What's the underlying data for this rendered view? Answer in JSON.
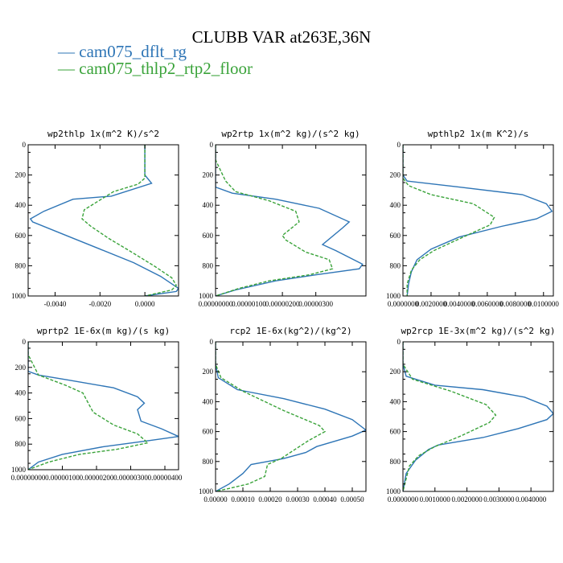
{
  "figure": {
    "title": "CLUBB VAR at263E,36N",
    "legend": [
      {
        "label": "cam075_dflt_rg",
        "color": "#2E75B6"
      },
      {
        "label": "cam075_thlp2_rtp2_floor",
        "color": "#3AA33A"
      }
    ]
  },
  "chart_data": [
    {
      "type": "line",
      "title": "wp2thlp  1x(m^2 K)/s^2",
      "xlim": [
        -0.0052,
        0.0015
      ],
      "ylim": [
        1000,
        0
      ],
      "xticks": [
        -0.004,
        -0.002,
        0.0
      ],
      "xtick_labels": [
        "-0.0040",
        "-0.0020",
        "0.0000"
      ],
      "yticks": [
        0,
        200,
        400,
        600,
        800,
        1000
      ],
      "ytick_labels": [
        "0",
        "200",
        "400",
        "600",
        "800",
        "1000"
      ],
      "series": [
        {
          "name": "cam075_dflt_rg",
          "dashed": false,
          "x": [
            0.0,
            0.0,
            0.0,
            0.0003,
            -0.0015,
            -0.0032,
            -0.0045,
            -0.0051,
            -0.005,
            -0.0035,
            -0.002,
            -0.0005,
            0.0007,
            0.0013,
            0.0015,
            0.0014,
            0.0
          ],
          "y": [
            0,
            100,
            200,
            255,
            340,
            360,
            440,
            490,
            510,
            600,
            690,
            780,
            870,
            930,
            950,
            970,
            1000
          ]
        },
        {
          "name": "cam075_thlp2_rtp2_floor",
          "dashed": true,
          "x": [
            0.0,
            0.0,
            0.0,
            -0.0003,
            -0.0014,
            -0.0027,
            -0.0028,
            -0.0024,
            -0.0016,
            -0.0007,
            0.0004,
            0.0012,
            0.0014,
            0.0012,
            0.0
          ],
          "y": [
            0,
            100,
            220,
            260,
            310,
            430,
            490,
            540,
            620,
            700,
            800,
            880,
            930,
            960,
            1000
          ]
        }
      ]
    },
    {
      "type": "line",
      "title": "wp2rtp  1x(m^2 kg)/(s^2 kg)",
      "xlim": [
        0.0,
        4.5e-06
      ],
      "ylim": [
        1000,
        0
      ],
      "xticks": [
        0.0,
        1e-06,
        2e-06,
        3e-06
      ],
      "xtick_labels": [
        "0.00000000",
        "0.00000100",
        "0.00000200",
        "0.00000300"
      ],
      "yticks": [
        0,
        200,
        400,
        600,
        800,
        1000
      ],
      "ytick_labels": [
        "0",
        "200",
        "400",
        "600",
        "800",
        "1000"
      ],
      "series": [
        {
          "name": "cam075_dflt_rg",
          "dashed": false,
          "x": [
            0.0,
            0.0,
            0.0,
            5e-07,
            1.8e-06,
            3.1e-06,
            4e-06,
            3.8e-06,
            3.2e-06,
            3.6e-06,
            4.4e-06,
            4.3e-06,
            3e-06,
            1.8e-06,
            6e-07,
            0.0
          ],
          "y": [
            0,
            100,
            280,
            320,
            360,
            420,
            510,
            550,
            660,
            700,
            790,
            820,
            860,
            900,
            960,
            1000
          ]
        },
        {
          "name": "cam075_thlp2_rtp2_floor",
          "dashed": true,
          "x": [
            0.0,
            0.0,
            3e-07,
            6e-07,
            1.6e-06,
            2.4e-06,
            2.5e-06,
            2e-06,
            2.1e-06,
            2.7e-06,
            3.4e-06,
            3.5e-06,
            2.8e-06,
            1.6e-06,
            7e-07,
            0.0
          ],
          "y": [
            0,
            100,
            240,
            310,
            370,
            440,
            510,
            600,
            630,
            710,
            760,
            820,
            860,
            900,
            950,
            1000
          ]
        }
      ]
    },
    {
      "type": "line",
      "title": "wpthlp2  1x(m K^2)/s",
      "xlim": [
        0.0,
        0.0107
      ],
      "ylim": [
        1000,
        0
      ],
      "xticks": [
        0.0,
        0.002,
        0.004,
        0.006,
        0.008,
        0.01
      ],
      "xtick_labels": [
        "0.0000000",
        "0.0020000",
        "0.0040000",
        "0.0060000",
        "0.0080000",
        "0.0100000"
      ],
      "yticks": [
        0,
        200,
        400,
        600,
        800,
        1000
      ],
      "ytick_labels": [
        "0",
        "200",
        "400",
        "600",
        "800",
        "1000"
      ],
      "series": [
        {
          "name": "cam075_dflt_rg",
          "dashed": false,
          "x": [
            0.0,
            0.0,
            0.0,
            0.0003,
            0.004,
            0.0085,
            0.0102,
            0.0106,
            0.0095,
            0.007,
            0.004,
            0.002,
            0.001,
            0.0006,
            0.0004,
            0.0003
          ],
          "y": [
            0,
            100,
            200,
            240,
            280,
            330,
            390,
            440,
            490,
            540,
            610,
            690,
            760,
            840,
            920,
            1000
          ]
        },
        {
          "name": "cam075_thlp2_rtp2_floor",
          "dashed": true,
          "x": [
            0.0,
            0.0,
            0.0,
            0.0004,
            0.002,
            0.005,
            0.0065,
            0.0062,
            0.005,
            0.0036,
            0.0022,
            0.0012,
            0.0006,
            0.0003,
            0.0003
          ],
          "y": [
            0,
            100,
            220,
            270,
            330,
            390,
            480,
            530,
            580,
            640,
            700,
            760,
            830,
            920,
            1000
          ]
        }
      ]
    },
    {
      "type": "line",
      "title": "wprtp2  1E-6x(m kg)/(s kg)",
      "xlim": [
        0.0,
        4.4e-06
      ],
      "ylim": [
        1000,
        0
      ],
      "xticks": [
        0.0,
        1e-06,
        2e-06,
        3e-06,
        4e-06
      ],
      "xtick_labels": [
        "0.00000000",
        "0.00000100",
        "0.00000200",
        "0.00000300",
        "0.00000400"
      ],
      "yticks": [
        0,
        200,
        400,
        600,
        800,
        1000
      ],
      "ytick_labels": [
        "0",
        "200",
        "400",
        "600",
        "800",
        "1000"
      ],
      "series": [
        {
          "name": "cam075_dflt_rg",
          "dashed": false,
          "x": [
            0.0,
            0.0,
            0.0,
            3e-07,
            1.2e-06,
            2.5e-06,
            3.2e-06,
            3.4e-06,
            3.2e-06,
            3.3e-06,
            3.9e-06,
            4.4e-06,
            3.6e-06,
            2.2e-06,
            1e-06,
            3e-07,
            0.0
          ],
          "y": [
            0,
            100,
            230,
            260,
            300,
            360,
            430,
            480,
            530,
            620,
            680,
            740,
            770,
            820,
            880,
            940,
            1000
          ]
        },
        {
          "name": "cam075_thlp2_rtp2_floor",
          "dashed": true,
          "x": [
            0.0,
            0.0,
            3e-07,
            1.1e-06,
            1.6e-06,
            1.9e-06,
            2.5e-06,
            3.2e-06,
            3.5e-06,
            2.6e-06,
            1.5e-06,
            6e-07,
            0.0
          ],
          "y": [
            0,
            100,
            260,
            340,
            400,
            550,
            650,
            720,
            790,
            840,
            880,
            940,
            1000
          ]
        }
      ]
    },
    {
      "type": "line",
      "title": "rcp2  1E-6x(kg^2)/(kg^2)",
      "xlim": [
        0.0,
        0.00055
      ],
      "ylim": [
        1000,
        0
      ],
      "xticks": [
        0.0,
        0.0001,
        0.0002,
        0.0003,
        0.0004,
        0.0005
      ],
      "xtick_labels": [
        "0.00000",
        "0.00010",
        "0.00020",
        "0.00030",
        "0.00040",
        "0.00050"
      ],
      "yticks": [
        0,
        200,
        400,
        600,
        800,
        1000
      ],
      "ytick_labels": [
        "0",
        "200",
        "400",
        "600",
        "800",
        "1000"
      ],
      "series": [
        {
          "name": "cam075_dflt_rg",
          "dashed": false,
          "x": [
            0.0,
            0.0,
            1e-05,
            8e-05,
            0.00025,
            0.0004,
            0.0005,
            0.00055,
            0.0005,
            0.00037,
            0.00033,
            0.00025,
            0.00013,
            0.0001,
            5e-05,
            0.0
          ],
          "y": [
            0,
            150,
            240,
            320,
            380,
            450,
            520,
            590,
            630,
            700,
            740,
            780,
            820,
            880,
            950,
            1000
          ]
        },
        {
          "name": "cam075_thlp2_rtp2_floor",
          "dashed": true,
          "x": [
            0.0,
            0.0,
            2e-05,
            0.0001,
            0.00025,
            0.00038,
            0.0004,
            0.00034,
            0.00029,
            0.00024,
            0.00019,
            0.00018,
            0.00012,
            5e-05,
            0.0
          ],
          "y": [
            0,
            150,
            240,
            330,
            460,
            560,
            600,
            660,
            720,
            780,
            820,
            900,
            950,
            980,
            1000
          ]
        }
      ]
    },
    {
      "type": "line",
      "title": "wp2rcp  1E-3x(m^2 kg)/(s^2 kg)",
      "xlim": [
        0.0,
        0.0047
      ],
      "ylim": [
        1000,
        0
      ],
      "xticks": [
        0.0,
        0.001,
        0.002,
        0.003,
        0.004
      ],
      "xtick_labels": [
        "0.0000000",
        "0.0010000",
        "0.0020000",
        "0.0030000",
        "0.0040000"
      ],
      "yticks": [
        0,
        200,
        400,
        600,
        800,
        1000
      ],
      "ytick_labels": [
        "0",
        "200",
        "400",
        "600",
        "800",
        "1000"
      ],
      "series": [
        {
          "name": "cam075_dflt_rg",
          "dashed": false,
          "x": [
            0.0,
            0.0,
            0.0001,
            0.001,
            0.0025,
            0.0038,
            0.0045,
            0.0047,
            0.0045,
            0.0036,
            0.0025,
            0.0011,
            0.0008,
            0.0004,
            0.0001,
            0.0
          ],
          "y": [
            0,
            150,
            230,
            290,
            320,
            370,
            430,
            480,
            520,
            580,
            640,
            690,
            720,
            790,
            880,
            1000
          ]
        },
        {
          "name": "cam075_thlp2_rtp2_floor",
          "dashed": true,
          "x": [
            0.0,
            0.0,
            0.0003,
            0.0015,
            0.0026,
            0.0029,
            0.0027,
            0.0018,
            0.001,
            0.0005,
            0.0002,
            0.0
          ],
          "y": [
            0,
            150,
            250,
            330,
            420,
            490,
            540,
            630,
            700,
            760,
            830,
            1000
          ]
        }
      ]
    }
  ]
}
